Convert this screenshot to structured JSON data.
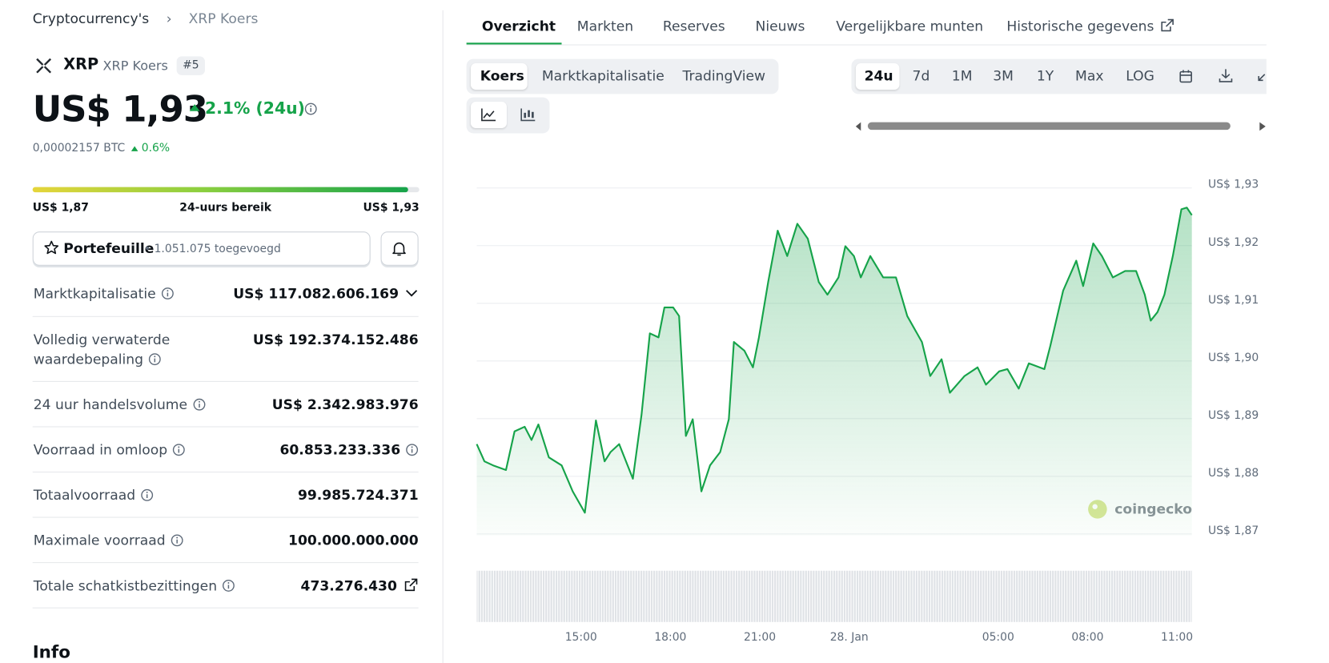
{
  "breadcrumb": [
    "Cryptocurrency's",
    "XRP Koers"
  ],
  "coin": {
    "symbol": "XRP",
    "name": "XRP Koers",
    "rank": "#5",
    "price": "US$ 1,93",
    "change": "2.1% (24u)",
    "btc_price": "0,00002157 BTC",
    "btc_change": "0.6%"
  },
  "range": {
    "low": "US$ 1,87",
    "label": "24-uurs bereik",
    "high": "US$ 1,93"
  },
  "portfolio": {
    "label": "Portefeuille",
    "count": "• 1.051.075 toegevoegd"
  },
  "stats": [
    {
      "label": "Marktkapitalisatie",
      "value": "US$ 117.082.606.169"
    },
    {
      "label": "Volledig verwaterde waardebepaling",
      "value": "US$ 192.374.152.486"
    },
    {
      "label": "24 uur handelsvolume",
      "value": "US$ 2.342.983.976"
    },
    {
      "label": "Voorraad in omloop",
      "value": "60.853.233.336"
    },
    {
      "label": "Totaalvoorraad",
      "value": "99.985.724.371"
    },
    {
      "label": "Maximale voorraad",
      "value": "100.000.000.000"
    },
    {
      "label": "Totale schatkistbezittingen",
      "value": "473.276.430"
    }
  ],
  "info_heading": "Info",
  "tabs": [
    "Overzicht",
    "Markten",
    "Reserves",
    "Nieuws",
    "Vergelijkbare munten",
    "Historische gegevens"
  ],
  "chart_modes": [
    "Koers",
    "Marktkapitalisatie",
    "TradingView"
  ],
  "ranges": [
    "24u",
    "7d",
    "1M",
    "3M",
    "1Y",
    "Max",
    "LOG"
  ],
  "watermark": "coingecko",
  "chart_data": {
    "type": "line",
    "color": "#16a34a",
    "x": [
      11.5,
      11.76,
      12.05,
      12.48,
      12.77,
      13.11,
      13.34,
      13.57,
      13.92,
      14.35,
      14.72,
      15.13,
      15.5,
      15.79,
      15.99,
      16.28,
      16.74,
      17.03,
      17.31,
      17.6,
      17.8,
      18.09,
      18.29,
      18.52,
      18.75,
      19.04,
      19.33,
      19.67,
      19.96,
      20.13,
      20.48,
      20.77,
      20.97,
      21.28,
      21.6,
      21.92,
      22.26,
      22.61,
      22.98,
      23.27,
      23.64,
      23.87,
      24.16,
      24.39,
      24.71,
      25.14,
      25.57,
      25.95,
      26.44,
      26.72,
      27.1,
      27.38,
      27.87,
      28.31,
      28.59,
      29.03,
      29.31,
      29.69,
      30.03,
      30.55,
      30.75,
      31.18,
      31.62,
      31.85,
      32.19,
      32.48,
      32.85,
      33.26,
      33.63,
      33.92,
      34.12,
      34.35,
      34.58,
      34.86,
      35.15,
      35.33,
      35.5
    ],
    "values": [
      1.885,
      1.882,
      1.8813,
      1.8805,
      1.8872,
      1.888,
      1.8857,
      1.8884,
      1.8827,
      1.8813,
      1.8768,
      1.8731,
      1.8891,
      1.882,
      1.8836,
      1.885,
      1.879,
      1.8901,
      1.9042,
      1.9035,
      1.9087,
      1.9087,
      1.9072,
      1.8864,
      1.8893,
      1.8768,
      1.8813,
      1.8836,
      1.8893,
      1.9027,
      1.9012,
      1.8983,
      1.9035,
      1.9131,
      1.922,
      1.9176,
      1.9232,
      1.9206,
      1.9131,
      1.9109,
      1.9139,
      1.9193,
      1.9176,
      1.9139,
      1.9176,
      1.9139,
      1.9139,
      1.9072,
      1.9027,
      1.8968,
      1.8997,
      1.8939,
      1.8968,
      1.8983,
      1.8953,
      1.8976,
      1.898,
      1.8946,
      1.899,
      1.898,
      1.902,
      1.9116,
      1.9168,
      1.9124,
      1.9198,
      1.9176,
      1.9139,
      1.915,
      1.915,
      1.9109,
      1.9064,
      1.9079,
      1.9109,
      1.9176,
      1.9257,
      1.926,
      1.9247
    ],
    "xlim": [
      11.5,
      35.5
    ],
    "xticks": [
      {
        "value": 15,
        "label": "15:00"
      },
      {
        "value": 18,
        "label": "18:00"
      },
      {
        "value": 21,
        "label": "21:00"
      },
      {
        "value": 24,
        "label": "28. Jan"
      },
      {
        "value": 29,
        "label": "05:00"
      },
      {
        "value": 32,
        "label": "08:00"
      },
      {
        "value": 35,
        "label": "11:00"
      }
    ],
    "ylim": [
      1.87,
      1.93
    ],
    "yticks": [
      {
        "value": 1.87,
        "label": "US$ 1,87"
      },
      {
        "value": 1.88,
        "label": "US$ 1,88"
      },
      {
        "value": 1.89,
        "label": "US$ 1,89"
      },
      {
        "value": 1.9,
        "label": "US$ 1,90"
      },
      {
        "value": 1.91,
        "label": "US$ 1,91"
      },
      {
        "value": 1.92,
        "label": "US$ 1,92"
      },
      {
        "value": 1.93,
        "label": "US$ 1,93"
      }
    ],
    "grid": true
  }
}
